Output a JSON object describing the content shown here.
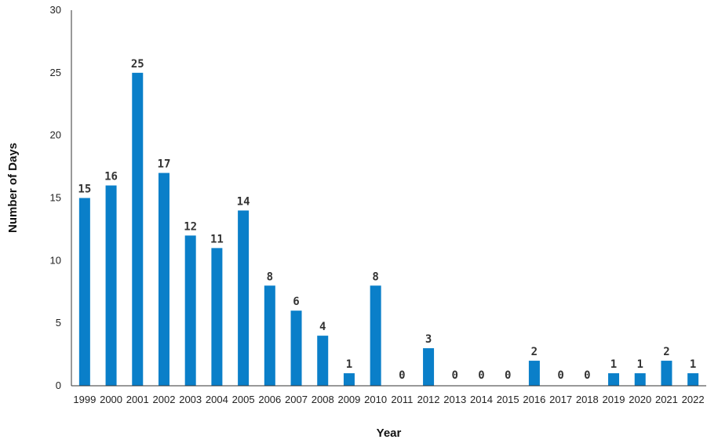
{
  "chart_data": {
    "type": "bar",
    "xlabel": "Year",
    "ylabel": "Number of Days",
    "ylim": [
      0,
      30
    ],
    "yticks": [
      0,
      5,
      10,
      15,
      20,
      25,
      30
    ],
    "grid": false,
    "bar_color": "#0a7fc9",
    "categories": [
      "1999",
      "2000",
      "2001",
      "2002",
      "2003",
      "2004",
      "2005",
      "2006",
      "2007",
      "2008",
      "2009",
      "2010",
      "2011",
      "2012",
      "2013",
      "2014",
      "2015",
      "2016",
      "2017",
      "2018",
      "2019",
      "2020",
      "2021",
      "2022"
    ],
    "values": [
      15,
      16,
      25,
      17,
      12,
      11,
      14,
      8,
      6,
      4,
      1,
      8,
      0,
      3,
      0,
      0,
      0,
      2,
      0,
      0,
      1,
      1,
      2,
      1
    ]
  }
}
